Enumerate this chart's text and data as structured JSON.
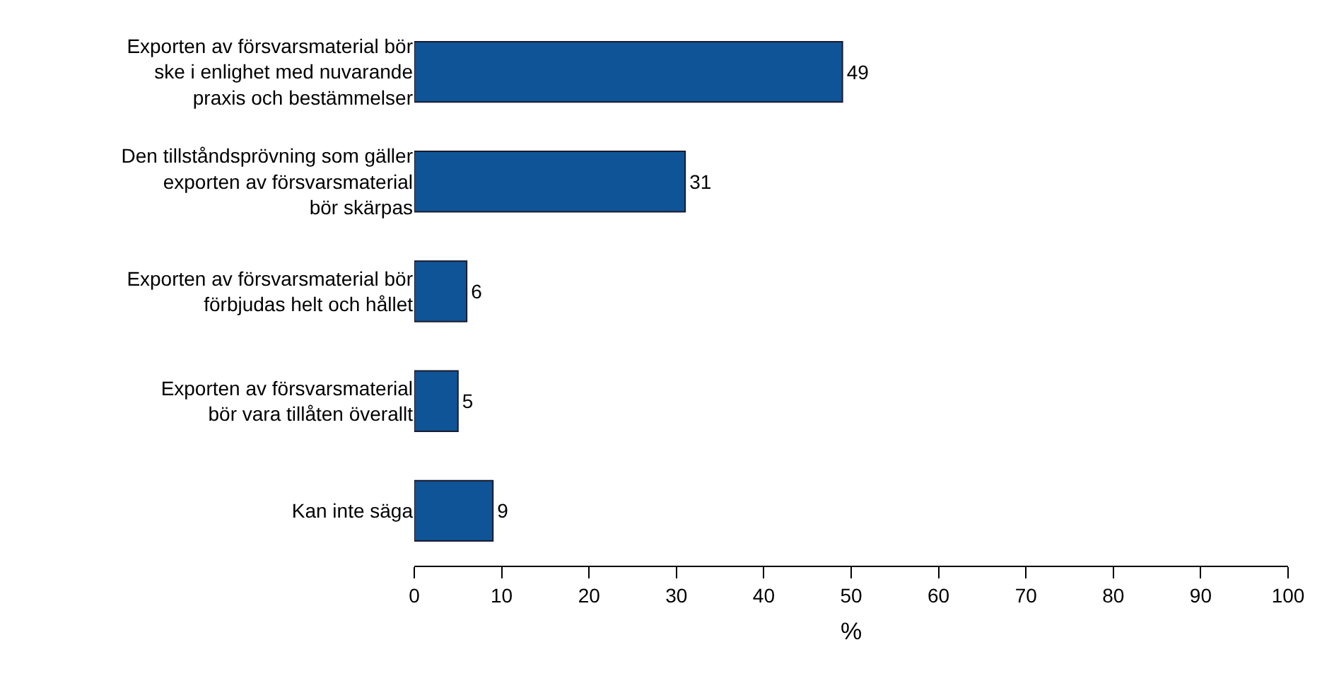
{
  "chart_data": {
    "type": "bar",
    "orientation": "horizontal",
    "xlabel": "%",
    "categories": [
      "Exporten av försvarsmaterial bör\nske i enlighet med nuvarande\npraxis och bestämmelser",
      "Den tillståndsprövning som gäller\nexporten av försvarsmaterial\nbör skärpas",
      "Exporten av försvarsmaterial bör\nförbjudas helt och hållet",
      "Exporten av försvarsmaterial\nbör vara tillåten överallt",
      "Kan inte säga"
    ],
    "values": [
      49,
      31,
      6,
      5,
      9
    ],
    "color": "#0f5496",
    "data_labels": true,
    "xlim": [
      0,
      100
    ],
    "xticks": [
      0,
      10,
      20,
      30,
      40,
      50,
      60,
      70,
      80,
      90,
      100
    ]
  }
}
